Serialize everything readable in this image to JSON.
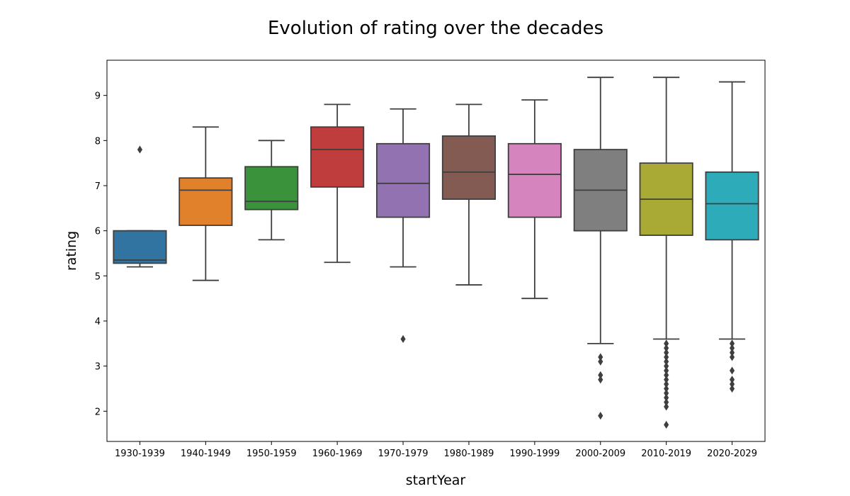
{
  "chart_data": {
    "type": "box",
    "title": "Evolution of rating over the decades",
    "xlabel": "startYear",
    "ylabel": "rating",
    "ylim": [
      1.33,
      9.78
    ],
    "yticks": [
      2,
      3,
      4,
      5,
      6,
      7,
      8,
      9
    ],
    "grid": false,
    "categories": [
      "1930-1939",
      "1940-1949",
      "1950-1959",
      "1960-1969",
      "1970-1979",
      "1980-1989",
      "1990-1999",
      "2000-2009",
      "2010-2019",
      "2020-2029"
    ],
    "series": [
      {
        "category": "1930-1939",
        "color": "#3274a1",
        "whisker_low": 5.2,
        "q1": 5.28,
        "median": 5.35,
        "q3": 6.0,
        "whisker_high": 6.0,
        "outliers": [
          7.8
        ]
      },
      {
        "category": "1940-1949",
        "color": "#e1812c",
        "whisker_low": 4.9,
        "q1": 6.12,
        "median": 6.9,
        "q3": 7.17,
        "whisker_high": 8.3,
        "outliers": []
      },
      {
        "category": "1950-1959",
        "color": "#3a923a",
        "whisker_low": 5.8,
        "q1": 6.47,
        "median": 6.65,
        "q3": 7.42,
        "whisker_high": 8.0,
        "outliers": []
      },
      {
        "category": "1960-1969",
        "color": "#c03d3e",
        "whisker_low": 5.3,
        "q1": 6.97,
        "median": 7.8,
        "q3": 8.3,
        "whisker_high": 8.8,
        "outliers": []
      },
      {
        "category": "1970-1979",
        "color": "#9372b2",
        "whisker_low": 5.2,
        "q1": 6.3,
        "median": 7.05,
        "q3": 7.93,
        "whisker_high": 8.7,
        "outliers": [
          3.6
        ]
      },
      {
        "category": "1980-1989",
        "color": "#845b53",
        "whisker_low": 4.8,
        "q1": 6.7,
        "median": 7.3,
        "q3": 8.1,
        "whisker_high": 8.8,
        "outliers": []
      },
      {
        "category": "1990-1999",
        "color": "#d684bd",
        "whisker_low": 4.5,
        "q1": 6.3,
        "median": 7.25,
        "q3": 7.93,
        "whisker_high": 8.9,
        "outliers": []
      },
      {
        "category": "2000-2009",
        "color": "#7f7f7f",
        "whisker_low": 3.5,
        "q1": 6.0,
        "median": 6.9,
        "q3": 7.8,
        "whisker_high": 9.4,
        "outliers": [
          3.2,
          3.1,
          2.8,
          2.7,
          1.9
        ]
      },
      {
        "category": "2010-2019",
        "color": "#a9aa35",
        "whisker_low": 3.6,
        "q1": 5.9,
        "median": 6.7,
        "q3": 7.5,
        "whisker_high": 9.4,
        "outliers": [
          3.5,
          3.4,
          3.3,
          3.2,
          3.1,
          3.0,
          2.9,
          2.8,
          2.7,
          2.6,
          2.5,
          2.4,
          2.3,
          2.2,
          2.1,
          1.7
        ]
      },
      {
        "category": "2020-2029",
        "color": "#2eabb8",
        "whisker_low": 3.6,
        "q1": 5.8,
        "median": 6.6,
        "q3": 7.3,
        "whisker_high": 9.3,
        "outliers": [
          3.5,
          3.4,
          3.3,
          3.2,
          2.9,
          2.7,
          2.6,
          2.5
        ]
      }
    ]
  }
}
